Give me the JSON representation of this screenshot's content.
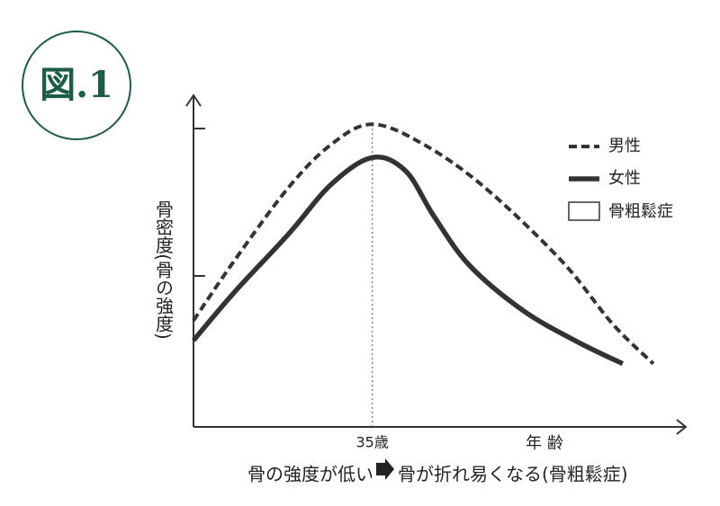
{
  "figure_label": "図.1",
  "chart_data": {
    "type": "line",
    "y_label": "骨密度(骨の強度)",
    "x_label": "年 齢",
    "caption_left": "骨の強度が低い",
    "caption_right": "骨が折れ易くなる(骨粗鬆症)",
    "legend_extra": "骨粗鬆症",
    "xlim": [
      0,
      96
    ],
    "ylim": [
      0,
      100
    ],
    "xticks": [
      {
        "value": 35,
        "label": "35歳"
      }
    ],
    "series": [
      {
        "name": "男性",
        "color": "#333333",
        "style": "dashed",
        "x": [
          0,
          8,
          18.6,
          27,
          35,
          45,
          57,
          72,
          82,
          90
        ],
        "values": [
          32,
          50,
          72,
          85,
          91,
          85,
          72,
          50,
          31,
          19
        ]
      },
      {
        "name": "女性",
        "color": "#333333",
        "style": "solid",
        "x": [
          0,
          8,
          18.6,
          27,
          35,
          41.5,
          47,
          54,
          64.5,
          75,
          84
        ],
        "values": [
          26,
          40.5,
          58,
          73,
          81,
          77,
          63.5,
          48.6,
          35,
          25.7,
          19
        ]
      }
    ]
  }
}
